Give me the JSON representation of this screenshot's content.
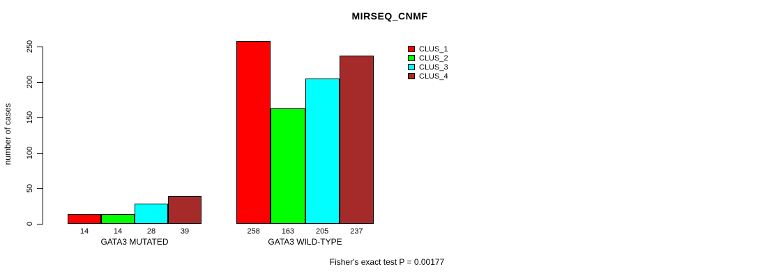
{
  "chart_data": {
    "type": "bar",
    "title": "MIRSEQ_CNMF",
    "ylabel": "number of cases",
    "xlabel": "",
    "categories": [
      "GATA3 MUTATED",
      "GATA3 WILD-TYPE"
    ],
    "series": [
      {
        "name": "CLUS_1",
        "color": "#FF0000",
        "values": [
          14,
          258
        ]
      },
      {
        "name": "CLUS_2",
        "color": "#00FF00",
        "values": [
          14,
          163
        ]
      },
      {
        "name": "CLUS_3",
        "color": "#00FFFF",
        "values": [
          28,
          205
        ]
      },
      {
        "name": "CLUS_4",
        "color": "#A52A2A",
        "values": [
          39,
          237
        ]
      }
    ],
    "yticks": [
      0,
      50,
      100,
      150,
      200,
      250
    ],
    "ylim": [
      0,
      250
    ],
    "bar_value_labels_shown": true,
    "legend_position": "top-right",
    "grid": false,
    "annotation": "Fisher's exact test P = 0.00177"
  }
}
